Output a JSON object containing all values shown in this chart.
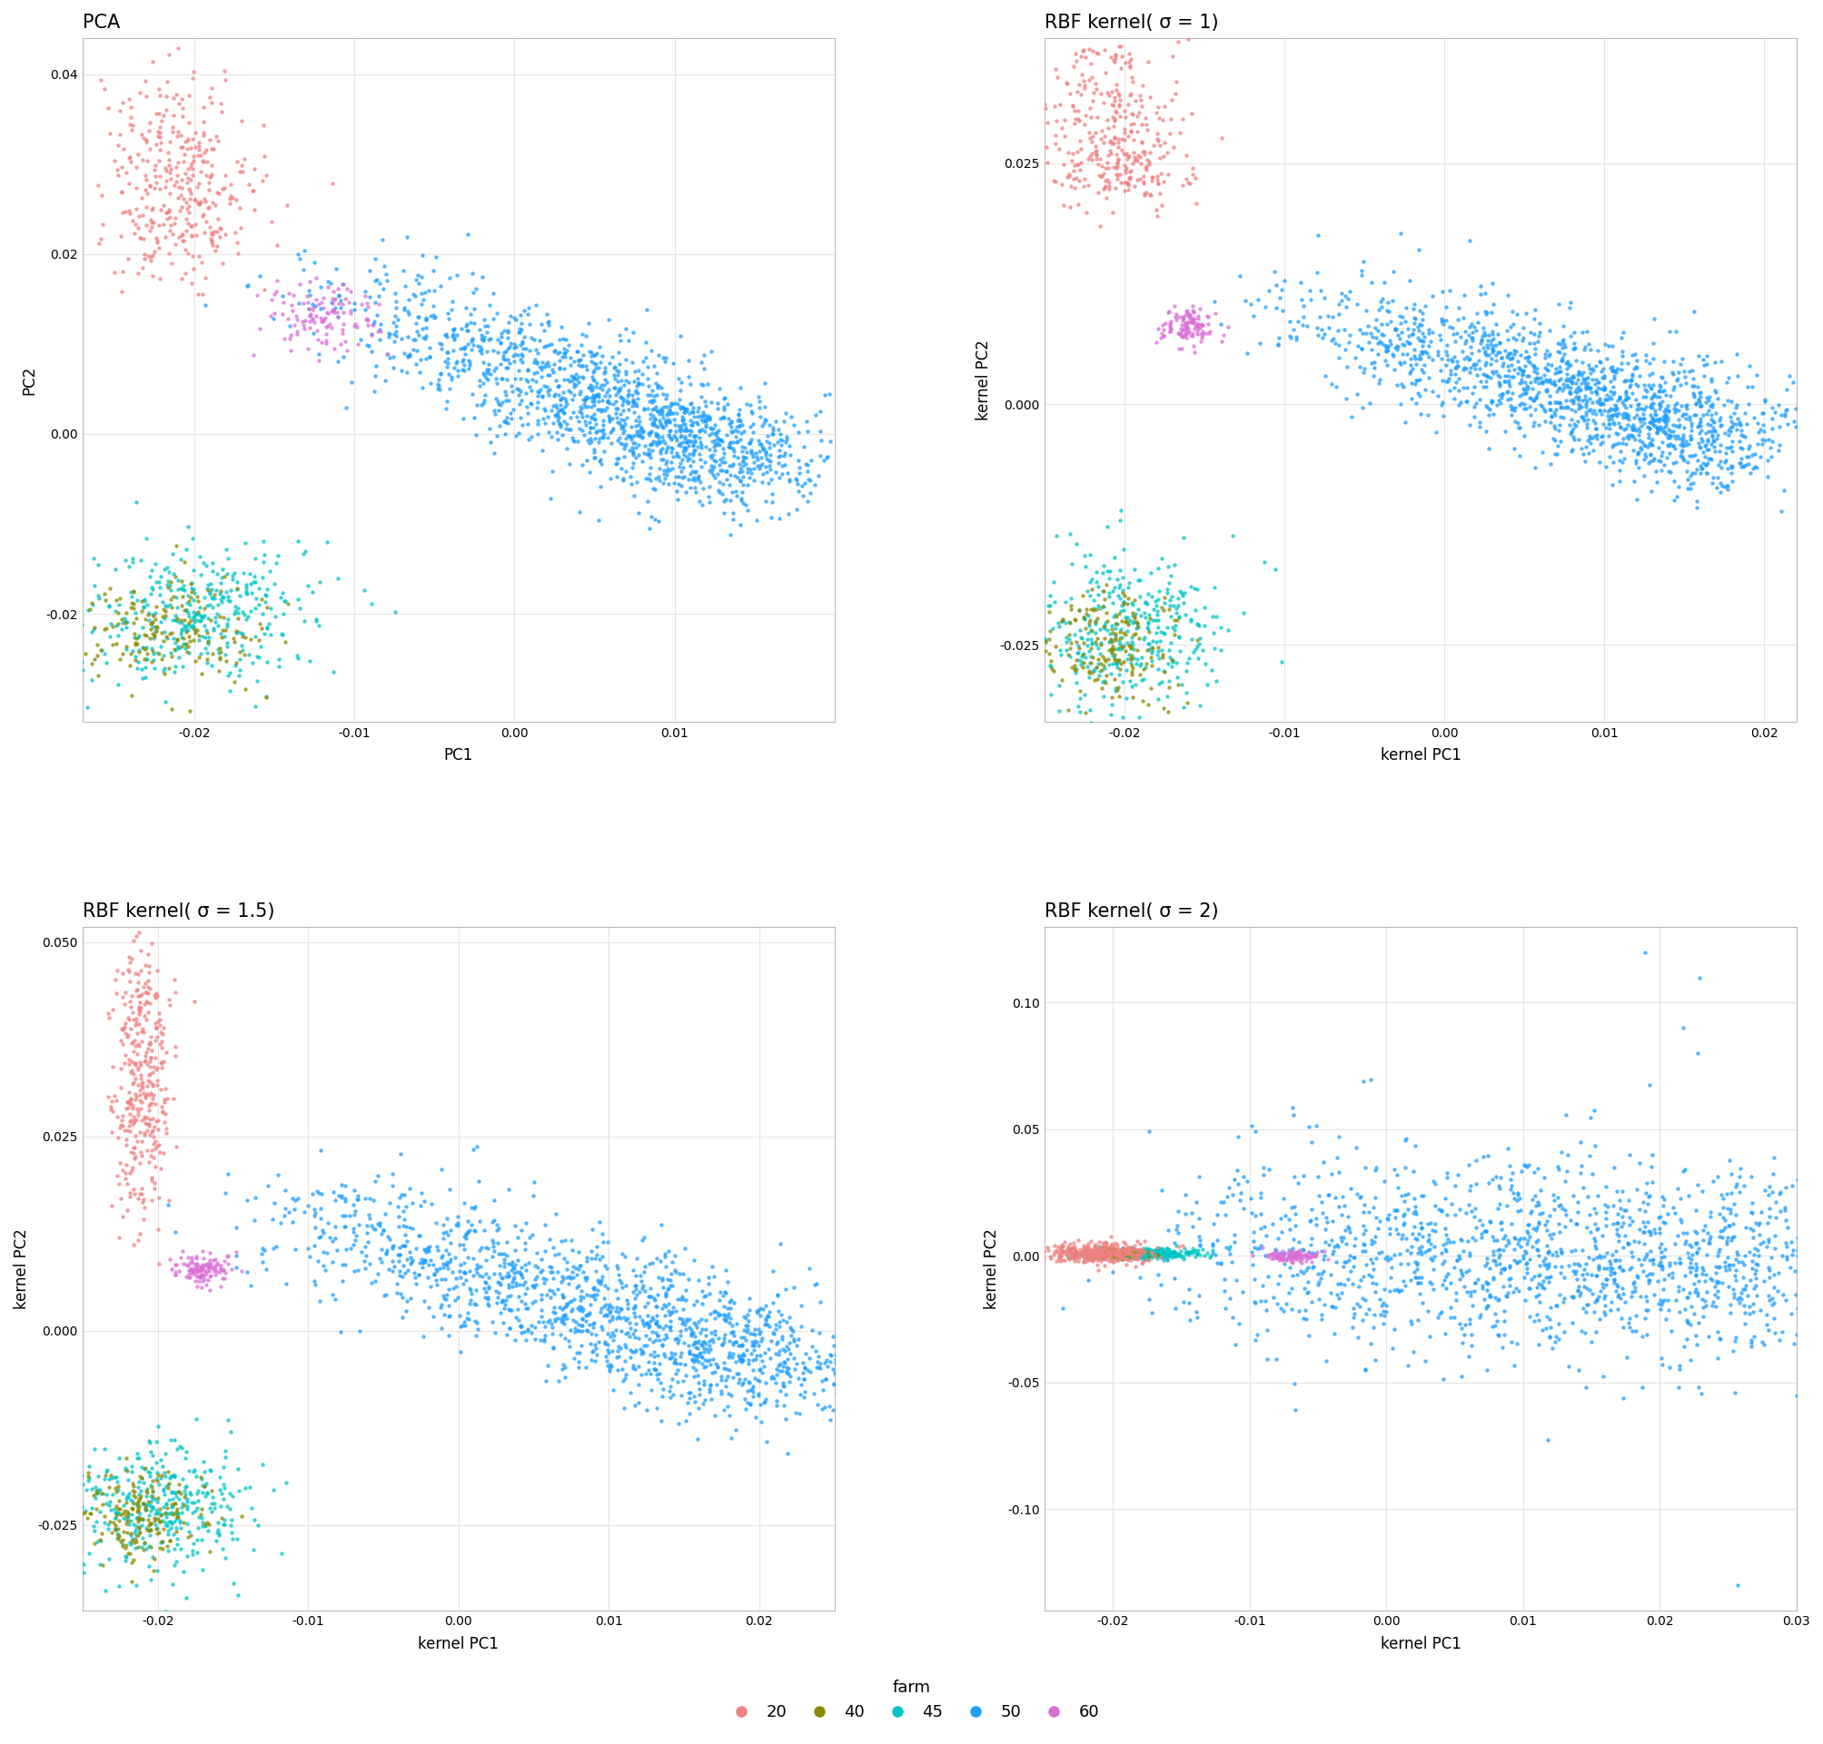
{
  "titles": [
    "PCA",
    "RBF kernel( σ = 1)",
    "RBF kernel( σ = 1.5)",
    "RBF kernel( σ = 2)"
  ],
  "xlabels": [
    "PC1",
    "kernel PC1",
    "kernel PC1",
    "kernel PC1"
  ],
  "ylabels": [
    "PC2",
    "kernel PC2",
    "kernel PC2",
    "kernel PC2"
  ],
  "farm_colors": {
    "20": "#F08080",
    "40": "#8B8B00",
    "45": "#00C5C5",
    "50": "#1E9EFF",
    "60": "#DA70D6"
  },
  "legend_title": "farm",
  "background_color": "#FFFFFF",
  "panel_background": "#FFFFFF",
  "grid_color": "#E5E5E5",
  "point_size": 10,
  "alpha": 0.75,
  "n_farms": {
    "20": 350,
    "40": 180,
    "45": 380,
    "50": 1500,
    "60": 120
  }
}
